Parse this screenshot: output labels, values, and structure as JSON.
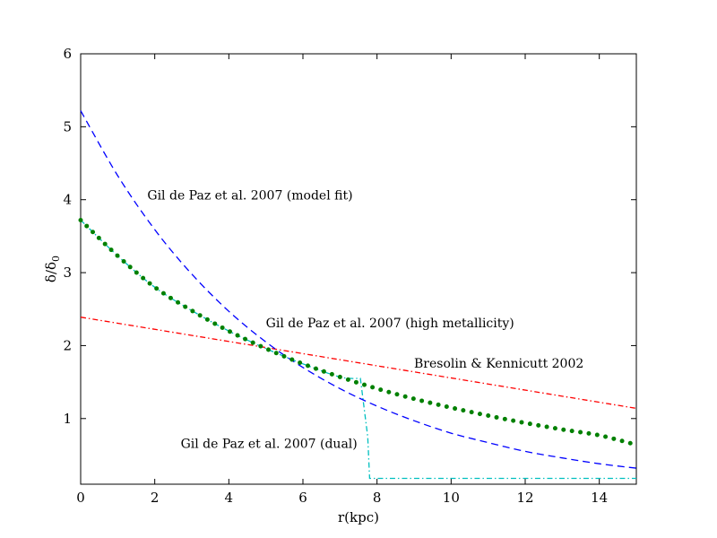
{
  "chart_data": {
    "type": "line",
    "title": "",
    "xlabel": "r(kpc)",
    "ylabel_main": "δ/δ",
    "ylabel_sub": "0",
    "xlim": [
      0,
      15
    ],
    "ylim": [
      0.1,
      6
    ],
    "xticks": [
      0,
      2,
      4,
      6,
      8,
      10,
      12,
      14
    ],
    "yticks": [
      1,
      2,
      3,
      4,
      5,
      6
    ],
    "grid": false,
    "series": [
      {
        "name": "Gil de Paz et al. 2007 (model fit)",
        "style": "dashed",
        "color": "#0000ff",
        "x": [
          0,
          1,
          2,
          3,
          4,
          5,
          6,
          7,
          8,
          9,
          10,
          11,
          12,
          13,
          14,
          15
        ],
        "y": [
          5.22,
          4.33,
          3.59,
          2.98,
          2.47,
          2.05,
          1.7,
          1.41,
          1.17,
          0.97,
          0.8,
          0.67,
          0.55,
          0.46,
          0.38,
          0.32
        ]
      },
      {
        "name": "Gil de Paz et al. 2007 (high metallicity)",
        "style": "dotted",
        "color": "#008000",
        "x": [
          0,
          1,
          2,
          3,
          4,
          5,
          6,
          7,
          8,
          9,
          10,
          11,
          12,
          13,
          14,
          15
        ],
        "y": [
          3.72,
          3.23,
          2.8,
          2.48,
          2.2,
          1.96,
          1.75,
          1.57,
          1.41,
          1.27,
          1.15,
          1.04,
          0.94,
          0.85,
          0.77,
          0.64
        ]
      },
      {
        "name": "Bresolin & Kennicutt 2002",
        "style": "dashdot",
        "color": "#ff0000",
        "x": [
          0,
          15
        ],
        "y": [
          2.39,
          1.14
        ]
      },
      {
        "name": "Gil de Paz et al. 2007 (dual)",
        "style": "dashdot",
        "color": "#00bfbf",
        "x": [
          0,
          1,
          2,
          3,
          4,
          5,
          6,
          7,
          7.55,
          7.75,
          7.8,
          10,
          12,
          14,
          15
        ],
        "y": [
          3.72,
          3.23,
          2.8,
          2.48,
          2.2,
          1.96,
          1.75,
          1.57,
          1.55,
          0.75,
          0.18,
          0.18,
          0.18,
          0.18,
          0.18
        ]
      }
    ],
    "annotations": [
      {
        "text": "Gil de Paz et al. 2007 (model fit)",
        "x": 1.8,
        "y": 4.0
      },
      {
        "text": "Gil de Paz et al. 2007 (high metallicity)",
        "x": 5.0,
        "y": 2.25
      },
      {
        "text": "Bresolin & Kennicutt 2002",
        "x": 9.0,
        "y": 1.7
      },
      {
        "text": "Gil de Paz et al. 2007 (dual)",
        "x": 2.7,
        "y": 0.6
      }
    ]
  }
}
